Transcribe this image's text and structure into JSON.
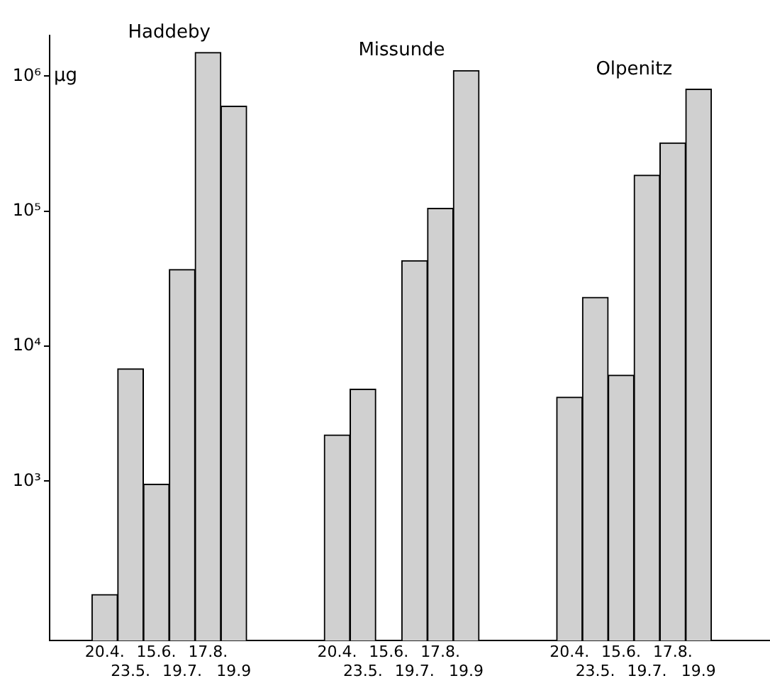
{
  "chart_data": {
    "type": "bar",
    "ylabel": "µg",
    "log": "y",
    "ylim": [
      66,
      2000000
    ],
    "yticks": [
      {
        "value": 1000,
        "label": "10³"
      },
      {
        "value": 10000,
        "label": "10⁴"
      },
      {
        "value": 100000,
        "label": "10⁵"
      },
      {
        "value": 1000000,
        "label": "10⁶"
      }
    ],
    "categories": [
      "20.4.",
      "23.5.",
      "15.6.",
      "19.7.",
      "17.8.",
      "19.9",
      null,
      null,
      null,
      "20.4.",
      "23.5.",
      "15.6.",
      "19.7.",
      "17.8.",
      "19.9",
      null,
      null,
      null,
      "20.4.",
      "23.5.",
      "15.6.",
      "19.7.",
      "17.8.",
      "19.9"
    ],
    "series": [
      {
        "name": "Haddeby",
        "color": "#d0d0d0",
        "values": [
          145,
          6800,
          950,
          37000,
          1500000,
          600000,
          null,
          null,
          null,
          null,
          null,
          null,
          null,
          null,
          null,
          null,
          null,
          null,
          null,
          null,
          null,
          null,
          null,
          null
        ]
      },
      {
        "name": "Missunde",
        "color": "#d0d0d0",
        "values": [
          null,
          null,
          null,
          null,
          null,
          null,
          null,
          null,
          null,
          2200,
          4800,
          null,
          43000,
          105000,
          1100000,
          null,
          null,
          null,
          null,
          null,
          null,
          null,
          null,
          null
        ]
      },
      {
        "name": "Olpenitz",
        "color": "#d0d0d0",
        "values": [
          null,
          null,
          null,
          null,
          null,
          null,
          null,
          null,
          null,
          null,
          null,
          null,
          null,
          null,
          null,
          null,
          null,
          null,
          4200,
          23000,
          6100,
          185000,
          320000,
          800000
        ]
      }
    ]
  }
}
